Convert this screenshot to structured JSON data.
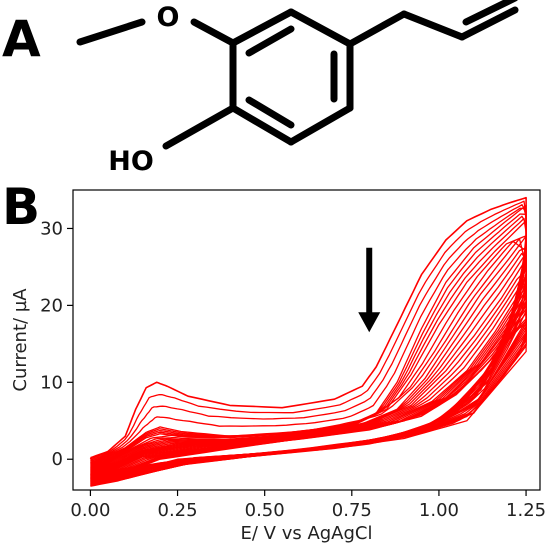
{
  "panels": {
    "a": "A",
    "b": "B"
  },
  "molecule": {
    "atom_o": "O",
    "atom_ho": "HO"
  },
  "colors": {
    "trace": "#ff0000",
    "axis": "#000000",
    "arrow": "#000000"
  },
  "arrow_icon": "down-arrow-icon",
  "chart_data": {
    "type": "line",
    "xlabel": "E/ V vs AgAgCl",
    "ylabel": "Current/ µA",
    "xlim": [
      -0.05,
      1.29
    ],
    "ylim": [
      -4,
      35
    ],
    "xticks": [
      "0.00",
      "0.25",
      "0.50",
      "0.75",
      "1.00",
      "1.25"
    ],
    "yticks": [
      "0",
      "10",
      "20",
      "30"
    ],
    "grid": false,
    "cycles": 30,
    "arrow": {
      "x": 0.8,
      "y_from": 27.5,
      "y_to": 16.5
    },
    "series": [
      {
        "x": [
          0.0,
          0.05,
          0.1,
          0.13,
          0.16,
          0.19,
          0.22,
          0.28,
          0.4,
          0.55,
          0.7,
          0.78,
          0.82,
          0.88,
          0.95,
          1.02,
          1.08,
          1.15,
          1.2,
          1.25,
          1.25,
          1.18,
          1.1,
          1.0,
          0.9,
          0.8,
          0.65,
          0.5,
          0.35,
          0.2,
          0.1,
          0.03,
          0.0
        ],
        "y": [
          0.2,
          1.0,
          3.0,
          6.5,
          9.3,
          10.0,
          9.5,
          8.2,
          7.0,
          6.7,
          7.8,
          9.5,
          12.0,
          17.5,
          24.0,
          28.5,
          31.0,
          32.5,
          33.3,
          34.0,
          26.0,
          14.0,
          8.0,
          4.5,
          3.0,
          2.0,
          1.2,
          0.8,
          0.3,
          -0.5,
          -1.2,
          -1.6,
          0.2
        ]
      },
      {
        "x": [
          0.0,
          0.1,
          0.16,
          0.2,
          0.26,
          0.4,
          0.6,
          0.75,
          0.82,
          0.88,
          0.95,
          1.02,
          1.1,
          1.18,
          1.25,
          1.25,
          1.18,
          1.05,
          0.9,
          0.7,
          0.5,
          0.3,
          0.1,
          0.0
        ],
        "y": [
          -0.5,
          1.5,
          3.5,
          4.2,
          3.6,
          3.0,
          3.6,
          4.6,
          6.0,
          10.0,
          17.0,
          23.0,
          27.5,
          30.5,
          33.0,
          25.0,
          14.0,
          6.0,
          3.0,
          1.6,
          0.8,
          0.2,
          -1.6,
          -0.5
        ]
      },
      {
        "x": [
          0.0,
          0.1,
          0.16,
          0.2,
          0.26,
          0.4,
          0.6,
          0.75,
          0.85,
          0.92,
          1.0,
          1.08,
          1.16,
          1.25,
          1.25,
          1.15,
          1.0,
          0.85,
          0.65,
          0.45,
          0.25,
          0.1,
          0.0
        ],
        "y": [
          -1.0,
          1.0,
          2.8,
          3.3,
          3.0,
          2.8,
          3.4,
          4.3,
          6.5,
          11.0,
          17.5,
          23.0,
          27.0,
          31.0,
          23.0,
          11.5,
          5.0,
          2.8,
          1.5,
          0.6,
          0.0,
          -1.8,
          -1.0
        ]
      },
      {
        "x": [
          0.0,
          0.15,
          0.22,
          0.4,
          0.6,
          0.78,
          0.88,
          0.96,
          1.04,
          1.12,
          1.2,
          1.25,
          1.25,
          1.14,
          1.0,
          0.85,
          0.65,
          0.45,
          0.25,
          0.1,
          0.0
        ],
        "y": [
          -1.5,
          1.8,
          2.5,
          2.6,
          3.3,
          4.6,
          6.5,
          10.5,
          16.0,
          21.5,
          26.0,
          29.0,
          22.0,
          10.0,
          4.6,
          2.6,
          1.4,
          0.5,
          -0.2,
          -2.0,
          -1.5
        ]
      },
      {
        "x": [
          0.0,
          0.15,
          0.25,
          0.45,
          0.65,
          0.8,
          0.92,
          1.02,
          1.1,
          1.18,
          1.25,
          1.25,
          1.12,
          0.98,
          0.82,
          0.6,
          0.4,
          0.2,
          0.05,
          0.0
        ],
        "y": [
          -2.0,
          1.2,
          2.0,
          2.5,
          3.4,
          4.6,
          7.0,
          11.5,
          16.0,
          21.0,
          26.0,
          20.0,
          9.0,
          4.4,
          2.6,
          1.3,
          0.4,
          -0.5,
          -2.3,
          -2.0
        ]
      },
      {
        "x": [
          0.0,
          0.15,
          0.3,
          0.5,
          0.7,
          0.85,
          0.98,
          1.08,
          1.16,
          1.25,
          1.25,
          1.12,
          0.98,
          0.8,
          0.6,
          0.4,
          0.2,
          0.05,
          0.0
        ],
        "y": [
          -2.4,
          0.8,
          1.8,
          2.5,
          3.5,
          4.8,
          7.5,
          11.5,
          16.5,
          23.0,
          18.0,
          8.0,
          4.0,
          2.4,
          1.1,
          0.2,
          -0.8,
          -2.6,
          -2.4
        ]
      },
      {
        "x": [
          0.0,
          0.15,
          0.35,
          0.55,
          0.75,
          0.9,
          1.02,
          1.12,
          1.2,
          1.25,
          1.25,
          1.1,
          0.95,
          0.78,
          0.58,
          0.38,
          0.18,
          0.05,
          0.0
        ],
        "y": [
          -2.8,
          0.3,
          1.6,
          2.5,
          3.6,
          5.0,
          8.0,
          12.5,
          17.5,
          21.0,
          16.5,
          7.0,
          3.6,
          2.1,
          0.9,
          0.0,
          -1.2,
          -2.9,
          -2.8
        ]
      },
      {
        "x": [
          0.0,
          0.2,
          0.4,
          0.6,
          0.8,
          0.95,
          1.05,
          1.14,
          1.25,
          1.25,
          1.1,
          0.92,
          0.72,
          0.5,
          0.3,
          0.12,
          0.0
        ],
        "y": [
          -3.2,
          0.4,
          1.6,
          2.6,
          3.8,
          5.6,
          8.4,
          12.5,
          19.0,
          15.0,
          6.0,
          3.1,
          1.7,
          0.6,
          -0.4,
          -2.2,
          -3.2
        ]
      },
      {
        "x": [
          0.0,
          0.2,
          0.45,
          0.7,
          0.9,
          1.02,
          1.12,
          1.25,
          1.25,
          1.08,
          0.9,
          0.7,
          0.45,
          0.25,
          0.08,
          0.0
        ],
        "y": [
          -3.5,
          0.0,
          1.7,
          3.3,
          5.0,
          7.6,
          11.5,
          18.0,
          14.0,
          5.0,
          2.7,
          1.4,
          0.3,
          -0.8,
          -2.8,
          -3.5
        ]
      }
    ]
  }
}
